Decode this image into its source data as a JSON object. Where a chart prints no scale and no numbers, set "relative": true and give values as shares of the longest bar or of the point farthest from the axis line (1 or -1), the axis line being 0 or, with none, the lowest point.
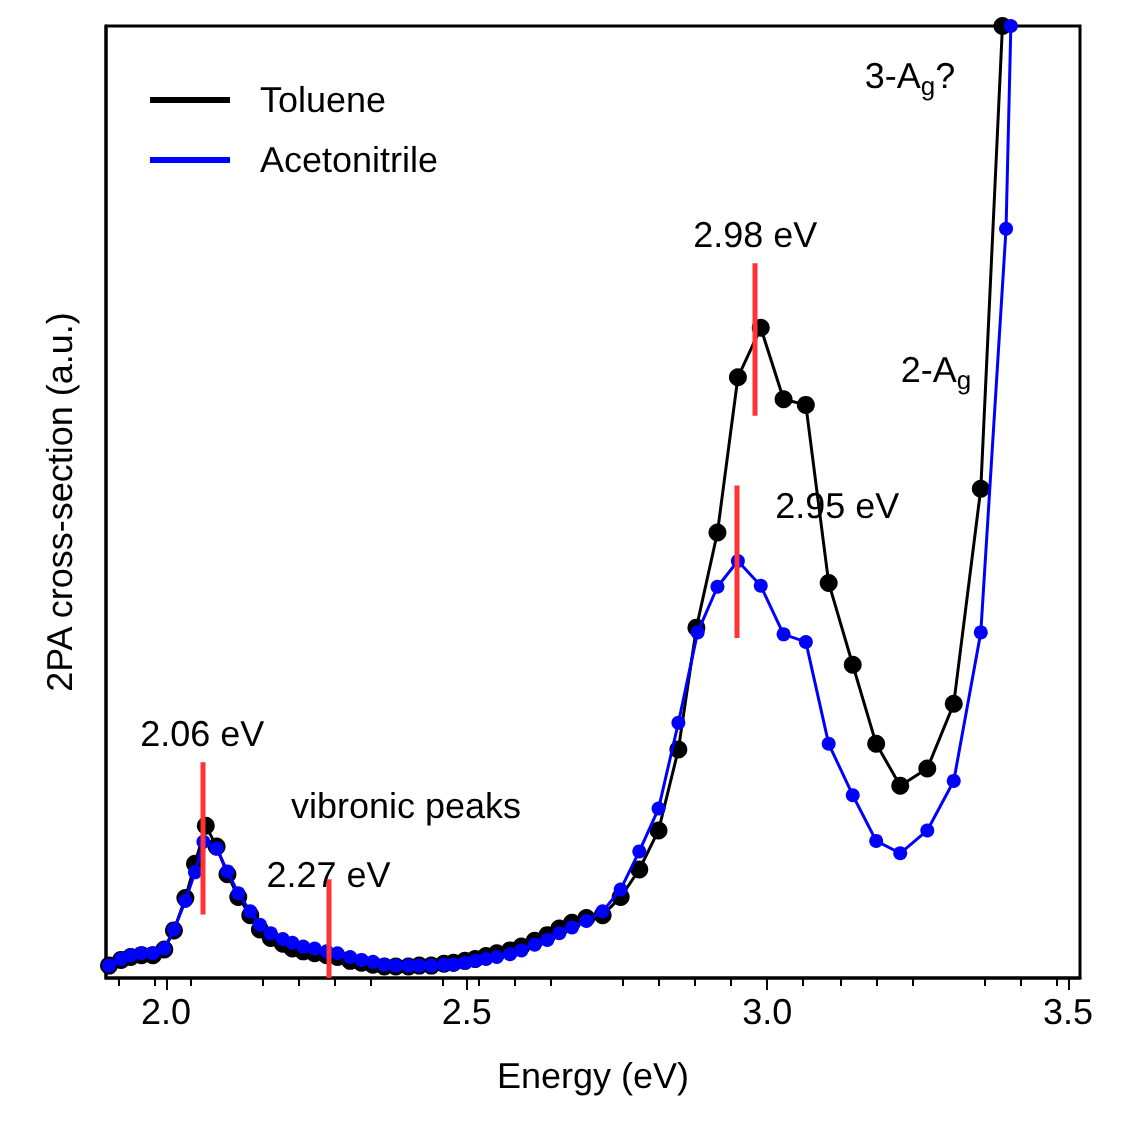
{
  "chart_data": {
    "type": "line",
    "xlabel": "Energy (eV)",
    "ylabel": "2PA cross-section (a.u.)",
    "relative": true,
    "marker": "circle",
    "legend": "top left",
    "grid": false,
    "xlim": [
      1.9,
      3.52
    ],
    "xticks": [
      {
        "value": 2,
        "label": "2.0"
      },
      {
        "value": 2.5,
        "label": "2.5"
      },
      {
        "value": 3,
        "label": "3.0"
      },
      {
        "value": 3.5,
        "label": "3.5"
      }
    ],
    "series": [
      {
        "name": "Toluene",
        "color": "#000000",
        "x": [
          1.905,
          1.925,
          1.941,
          1.959,
          1.978,
          1.997,
          2.013,
          2.032,
          2.048,
          2.066,
          2.084,
          2.102,
          2.12,
          2.14,
          2.156,
          2.174,
          2.194,
          2.21,
          2.228,
          2.247,
          2.267,
          2.285,
          2.306,
          2.325,
          2.344,
          2.363,
          2.382,
          2.403,
          2.421,
          2.441,
          2.462,
          2.478,
          2.497,
          2.514,
          2.532,
          2.55,
          2.572,
          2.591,
          2.613,
          2.634,
          2.654,
          2.675,
          2.699,
          2.726,
          2.756,
          2.787,
          2.819,
          2.852,
          2.882,
          2.917,
          2.951,
          2.989,
          3.027,
          3.064,
          3.102,
          3.142,
          3.181,
          3.221,
          3.266,
          3.31,
          3.355,
          3.391
        ],
        "values": [
          0.013,
          0.019,
          0.022,
          0.024,
          0.024,
          0.03,
          0.05,
          0.084,
          0.12,
          0.16,
          0.138,
          0.109,
          0.085,
          0.066,
          0.051,
          0.042,
          0.036,
          0.031,
          0.028,
          0.026,
          0.024,
          0.022,
          0.018,
          0.016,
          0.014,
          0.012,
          0.012,
          0.012,
          0.013,
          0.013,
          0.015,
          0.016,
          0.018,
          0.02,
          0.023,
          0.026,
          0.029,
          0.033,
          0.039,
          0.045,
          0.052,
          0.058,
          0.063,
          0.066,
          0.085,
          0.114,
          0.155,
          0.24,
          0.368,
          0.468,
          0.631,
          0.683,
          0.608,
          0.602,
          0.415,
          0.329,
          0.246,
          0.202,
          0.22,
          0.288,
          0.514,
          1
        ]
      },
      {
        "name": "Acetonitrile",
        "color": "#0000ff",
        "x": [
          1.905,
          1.925,
          1.941,
          1.959,
          1.978,
          1.997,
          2.013,
          2.032,
          2.048,
          2.062,
          2.084,
          2.102,
          2.12,
          2.14,
          2.156,
          2.174,
          2.194,
          2.21,
          2.228,
          2.247,
          2.267,
          2.285,
          2.306,
          2.325,
          2.344,
          2.363,
          2.382,
          2.403,
          2.421,
          2.441,
          2.462,
          2.478,
          2.497,
          2.514,
          2.532,
          2.55,
          2.572,
          2.591,
          2.613,
          2.634,
          2.654,
          2.675,
          2.699,
          2.726,
          2.756,
          2.787,
          2.819,
          2.852,
          2.884,
          2.917,
          2.951,
          2.989,
          3.027,
          3.064,
          3.102,
          3.142,
          3.181,
          3.221,
          3.266,
          3.31,
          3.355,
          3.397,
          3.405
        ],
        "values": [
          0.013,
          0.02,
          0.024,
          0.026,
          0.026,
          0.031,
          0.051,
          0.081,
          0.111,
          0.143,
          0.136,
          0.112,
          0.089,
          0.07,
          0.056,
          0.047,
          0.041,
          0.037,
          0.033,
          0.031,
          0.028,
          0.026,
          0.022,
          0.019,
          0.017,
          0.014,
          0.013,
          0.013,
          0.013,
          0.013,
          0.014,
          0.014,
          0.016,
          0.018,
          0.02,
          0.022,
          0.025,
          0.029,
          0.035,
          0.04,
          0.047,
          0.053,
          0.06,
          0.07,
          0.093,
          0.133,
          0.178,
          0.268,
          0.363,
          0.411,
          0.438,
          0.412,
          0.361,
          0.353,
          0.246,
          0.192,
          0.144,
          0.131,
          0.155,
          0.207,
          0.363,
          0.787,
          1
        ]
      }
    ],
    "ref_lines": [
      {
        "axis": "x",
        "value": 2.06,
        "label": "2.06 eV",
        "color": "#ff3333"
      },
      {
        "axis": "x",
        "value": 2.27,
        "label": "2.27 eV",
        "color": "#ff3333"
      },
      {
        "axis": "x",
        "value": 2.98,
        "label": "2.98 eV",
        "color": "#ff3333"
      },
      {
        "axis": "x",
        "value": 2.95,
        "label": "2.95 eV",
        "color": "#ff3333"
      }
    ],
    "annotations": [
      "vibronic peaks",
      "2-A$_{g}$",
      "3-A$_{g}$?"
    ]
  }
}
